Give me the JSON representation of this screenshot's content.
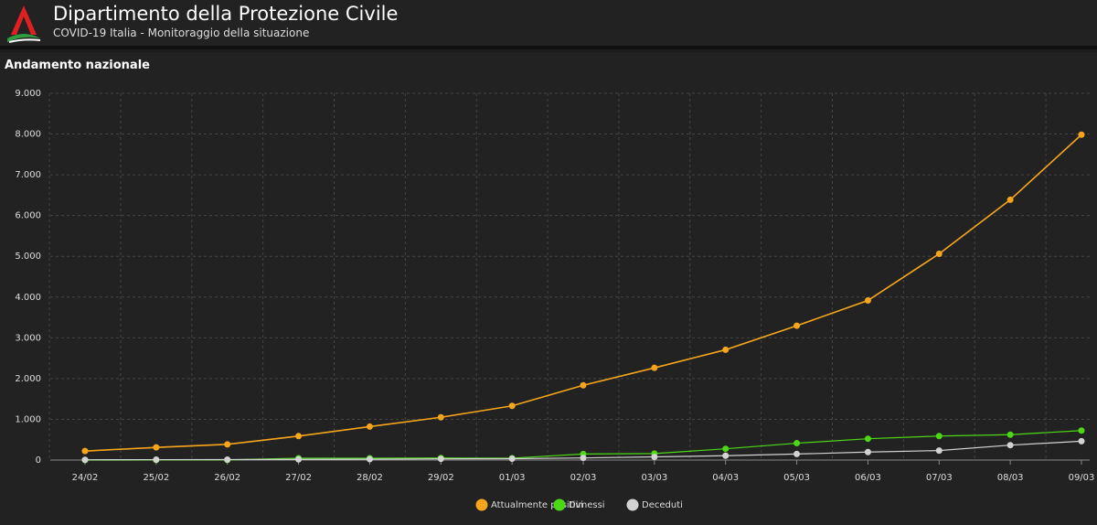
{
  "header": {
    "title": "Dipartimento della Protezione Civile",
    "subtitle": "COVID-19 Italia - Monitoraggio della situazione"
  },
  "chart_data": {
    "type": "line",
    "title": "Andamento nazionale",
    "categories": [
      "24/02",
      "25/02",
      "26/02",
      "27/02",
      "28/02",
      "29/02",
      "01/03",
      "02/03",
      "03/03",
      "04/03",
      "05/03",
      "06/03",
      "07/03",
      "08/03",
      "09/03"
    ],
    "series": [
      {
        "name": "Attualmente positivi",
        "color": "#f7a61c",
        "values": [
          221,
          311,
          385,
          588,
          821,
          1049,
          1330,
          1835,
          2263,
          2706,
          3296,
          3916,
          5061,
          6387,
          7985
        ]
      },
      {
        "name": "Dimessi",
        "color": "#4cd816",
        "values": [
          0,
          1,
          3,
          45,
          46,
          50,
          46,
          149,
          160,
          276,
          414,
          523,
          589,
          622,
          724
        ]
      },
      {
        "name": "Deceduti",
        "color": "#d3d3d3",
        "values": [
          7,
          10,
          12,
          17,
          21,
          29,
          34,
          52,
          79,
          107,
          148,
          197,
          233,
          366,
          463
        ]
      }
    ],
    "ylim": [
      0,
      9000
    ],
    "yticks": [
      0,
      {
        "value": 1000,
        "label": "1.000"
      },
      {
        "value": 2000,
        "label": "2.000"
      },
      {
        "value": 3000,
        "label": "3.000"
      },
      {
        "value": 4000,
        "label": "4.000"
      },
      {
        "value": 5000,
        "label": "5.000"
      },
      {
        "value": 6000,
        "label": "6.000"
      },
      {
        "value": 7000,
        "label": "7.000"
      },
      {
        "value": 8000,
        "label": "8.000"
      },
      {
        "value": 9000,
        "label": "9.000"
      }
    ],
    "grid": true,
    "legend": "bottom"
  }
}
